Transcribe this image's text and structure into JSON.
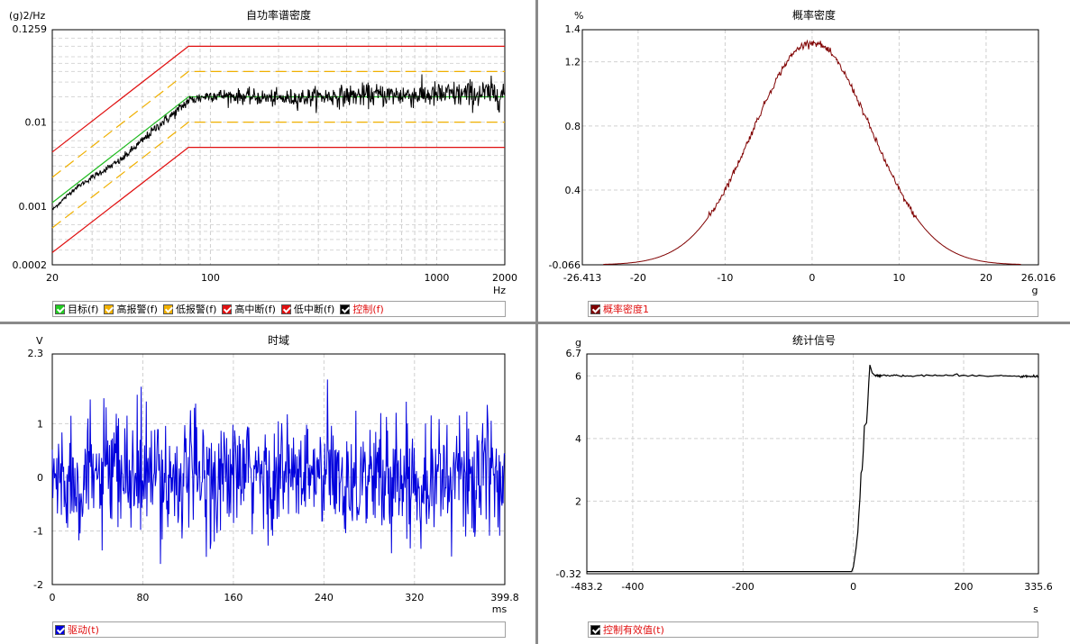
{
  "panels": {
    "psd": {
      "title": "自功率谱密度",
      "unit": "(g)2/Hz",
      "xunit": "Hz",
      "ytick_labels": [
        "0.1259",
        "0.01",
        "0.001",
        "0.0002"
      ],
      "xtick_labels": [
        "20",
        "100",
        "1000",
        "2000"
      ],
      "legend": [
        {
          "label": "目标(f)",
          "color": "#22cc22",
          "text_color": "#000000"
        },
        {
          "label": "高报警(f)",
          "color": "#f0b000",
          "text_color": "#000000"
        },
        {
          "label": "低报警(f)",
          "color": "#f0b000",
          "text_color": "#000000"
        },
        {
          "label": "高中断(f)",
          "color": "#e01010",
          "text_color": "#000000"
        },
        {
          "label": "低中断(f)",
          "color": "#e01010",
          "text_color": "#000000"
        },
        {
          "label": "控制(f)",
          "color": "#000000",
          "text_color": "#e01010"
        }
      ]
    },
    "pdf": {
      "title": "概率密度",
      "unit": "%",
      "xunit": "g",
      "ytick_labels": [
        "1.4",
        "1.2",
        "0.8",
        "0.4",
        "-0.066"
      ],
      "xtick_labels": [
        "-26.413",
        "-20",
        "-10",
        "0",
        "10",
        "20",
        "26.016"
      ],
      "legend": [
        {
          "label": "概率密度1",
          "color": "#800000",
          "text_color": "#e01010"
        }
      ]
    },
    "time": {
      "title": "时域",
      "unit": "V",
      "xunit": "ms",
      "ytick_labels": [
        "2.3",
        "1",
        "0",
        "-1",
        "-2"
      ],
      "xtick_labels": [
        "0",
        "80",
        "160",
        "240",
        "320",
        "399.8"
      ],
      "legend": [
        {
          "label": "驱动(t)",
          "color": "#0000dd",
          "text_color": "#e01010"
        }
      ]
    },
    "stat": {
      "title": "统计信号",
      "unit": "g",
      "xunit": "s",
      "ytick_labels": [
        "6.7",
        "6",
        "4",
        "2",
        "-0.32"
      ],
      "xtick_labels": [
        "-483.2",
        "-400",
        "-200",
        "0",
        "200",
        "335.6"
      ],
      "legend": [
        {
          "label": "控制有效值(t)",
          "color": "#000000",
          "text_color": "#e01010"
        }
      ]
    }
  },
  "chart_data": [
    {
      "type": "line",
      "title": "自功率谱密度",
      "ylabel": "(g)2/Hz",
      "xlabel": "Hz",
      "xscale": "log",
      "yscale": "log",
      "xlim": [
        20,
        2000
      ],
      "ylim": [
        0.0002,
        0.1259
      ],
      "series": [
        {
          "name": "目标(f)",
          "x": [
            20,
            80,
            2000
          ],
          "y": [
            0.0011,
            0.02,
            0.02
          ]
        },
        {
          "name": "高报警(f)",
          "x": [
            20,
            80,
            2000
          ],
          "y": [
            0.0022,
            0.04,
            0.04
          ]
        },
        {
          "name": "低报警(f)",
          "x": [
            20,
            80,
            2000
          ],
          "y": [
            0.00055,
            0.01,
            0.01
          ]
        },
        {
          "name": "高中断(f)",
          "x": [
            20,
            80,
            2000
          ],
          "y": [
            0.0044,
            0.08,
            0.08
          ]
        },
        {
          "name": "低中断(f)",
          "x": [
            20,
            80,
            2000
          ],
          "y": [
            0.00028,
            0.005,
            0.005
          ]
        },
        {
          "name": "控制(f)",
          "x": [
            20,
            25,
            30,
            40,
            50,
            60,
            70,
            80,
            100,
            150,
            200,
            300,
            500,
            1000,
            2000
          ],
          "y": [
            0.0009,
            0.0016,
            0.0022,
            0.0035,
            0.006,
            0.0095,
            0.013,
            0.018,
            0.021,
            0.02,
            0.019,
            0.02,
            0.021,
            0.021,
            0.022
          ]
        }
      ],
      "legend": "bottom",
      "grid": true
    },
    {
      "type": "line",
      "title": "概率密度",
      "ylabel": "%",
      "xlabel": "g",
      "xlim": [
        -26.413,
        26.016
      ],
      "ylim": [
        -0.066,
        1.4
      ],
      "series": [
        {
          "name": "概率密度1",
          "gaussian": {
            "mean": 0,
            "std": 6.8,
            "peak": 1.32,
            "base": -0.066
          }
        }
      ],
      "legend": "bottom",
      "grid": true
    },
    {
      "type": "line",
      "title": "时域",
      "ylabel": "V",
      "xlabel": "ms",
      "xlim": [
        0,
        399.8
      ],
      "ylim": [
        -2,
        2.3
      ],
      "series": [
        {
          "name": "驱动(t)",
          "random_signal": {
            "samples": 800,
            "mean": 0,
            "std": 0.55,
            "min": -1.7,
            "max": 2.1
          }
        }
      ],
      "legend": "bottom",
      "grid": true
    },
    {
      "type": "line",
      "title": "统计信号",
      "ylabel": "g",
      "xlabel": "s",
      "xlim": [
        -483.2,
        335.6
      ],
      "ylim": [
        -0.32,
        6.7
      ],
      "series": [
        {
          "name": "控制有效值(t)",
          "x": [
            -483.2,
            -3,
            0,
            5,
            8,
            10,
            12,
            14,
            16,
            18,
            20,
            24,
            26,
            28,
            30,
            34,
            40,
            50,
            100,
            200,
            300,
            335.6
          ],
          "y": [
            -0.25,
            -0.25,
            -0.1,
            0.5,
            1.0,
            1.6,
            2.1,
            2.9,
            3.0,
            3.6,
            4.4,
            4.5,
            5.1,
            5.8,
            6.35,
            6.1,
            6.0,
            6.02,
            6.0,
            6.02,
            5.98,
            5.98
          ]
        }
      ],
      "legend": "bottom",
      "grid": true
    }
  ]
}
